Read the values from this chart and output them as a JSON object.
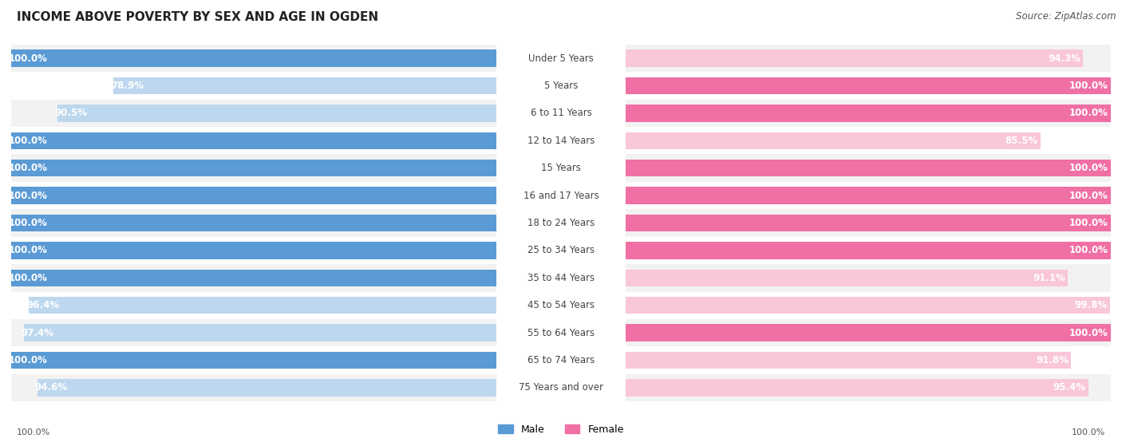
{
  "title": "INCOME ABOVE POVERTY BY SEX AND AGE IN OGDEN",
  "source": "Source: ZipAtlas.com",
  "categories": [
    "Under 5 Years",
    "5 Years",
    "6 to 11 Years",
    "12 to 14 Years",
    "15 Years",
    "16 and 17 Years",
    "18 to 24 Years",
    "25 to 34 Years",
    "35 to 44 Years",
    "45 to 54 Years",
    "55 to 64 Years",
    "65 to 74 Years",
    "75 Years and over"
  ],
  "male_values": [
    100.0,
    78.9,
    90.5,
    100.0,
    100.0,
    100.0,
    100.0,
    100.0,
    100.0,
    96.4,
    97.4,
    100.0,
    94.6
  ],
  "female_values": [
    94.3,
    100.0,
    100.0,
    85.5,
    100.0,
    100.0,
    100.0,
    100.0,
    91.1,
    99.8,
    100.0,
    91.8,
    95.4
  ],
  "male_color_full": "#5b9bd5",
  "male_color_light": "#bdd7ee",
  "female_color_full": "#f06fa4",
  "female_color_light": "#f9c6da",
  "male_label": "Male",
  "female_label": "Female",
  "bg_color": "#ffffff",
  "row_color_odd": "#f2f2f2",
  "row_color_even": "#ffffff",
  "title_fontsize": 11,
  "source_fontsize": 8.5,
  "value_fontsize": 8.5,
  "category_fontsize": 8.5,
  "bar_height": 0.62,
  "max_val": 100.0
}
